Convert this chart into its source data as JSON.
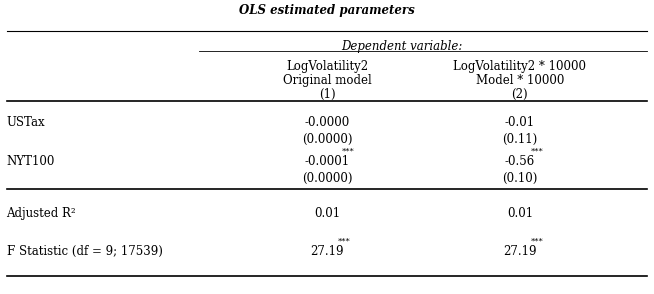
{
  "title": "OLS estimated parameters",
  "dep_var_label": "Dependent variable:",
  "col1_header": [
    "LogVolatility2",
    "Original model",
    "(1)"
  ],
  "col2_header": [
    "LogVolatility2 * 10000",
    "Model * 10000",
    "(2)"
  ],
  "rows": [
    {
      "label": "USTax",
      "col1_coef": "-0.0000",
      "col1_se": "(0.0000)",
      "col2_coef": "-0.01",
      "col2_se": "(0.11)",
      "col1_stars": "",
      "col2_stars": ""
    },
    {
      "label": "NYT100",
      "col1_coef": "-0.0001",
      "col1_se": "(0.0000)",
      "col2_coef": "-0.56",
      "col2_se": "(0.10)",
      "col1_stars": "***",
      "col2_stars": "***"
    }
  ],
  "footer": [
    {
      "label": "Adjusted R²",
      "col1": "0.01",
      "col2": "0.01",
      "col1_stars": "",
      "col2_stars": ""
    },
    {
      "label": "F Statistic (df = 9; 17539)",
      "col1": "27.19",
      "col2": "27.19",
      "col1_stars": "***",
      "col2_stars": "***"
    }
  ],
  "font_size": 8.5,
  "title_font_size": 8.5
}
